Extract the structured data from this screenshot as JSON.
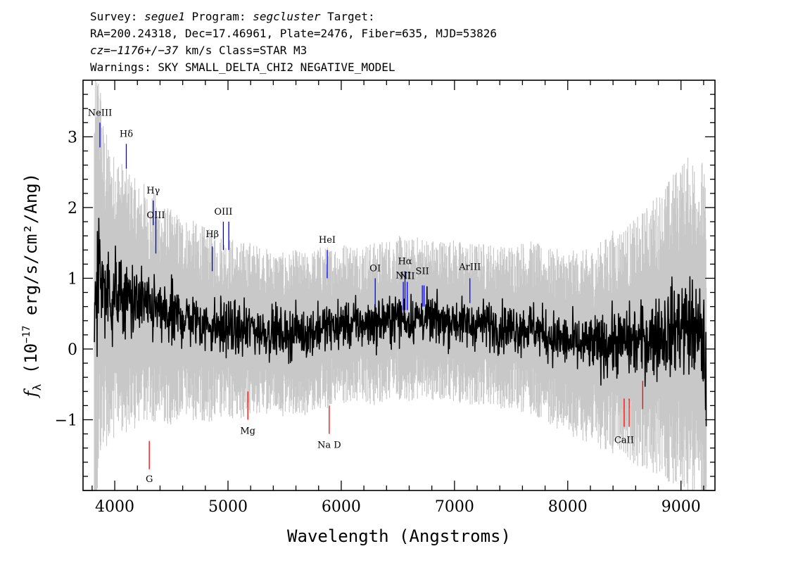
{
  "header": {
    "line1": {
      "survey_label": "Survey: ",
      "survey": "segue1",
      "program_label": " Program: ",
      "program": "segcluster",
      "target_label": " Target:"
    },
    "line2": "RA=200.24318, Dec=17.46961, Plate=2476, Fiber=635, MJD=53826",
    "line3": {
      "cz_label": "cz",
      "cz_value": "=−1176+/−37",
      "rest": " km/s Class=STAR M3"
    },
    "line4": "Warnings: SKY SMALL_DELTA_CHI2 NEGATIVE_MODEL"
  },
  "chart_data": {
    "type": "line",
    "xlabel": "Wavelength (Angstroms)",
    "ylabel_prefix": "f",
    "ylabel_sub": "λ",
    "ylabel_rest": " (10",
    "ylabel_exp": "−17",
    "ylabel_tail": " erg/s/cm²/Ang)",
    "xlim": [
      3720,
      9300
    ],
    "ylim": [
      -2.0,
      3.8
    ],
    "xticks": [
      {
        "value": 4000,
        "label": "4000"
      },
      {
        "value": 5000,
        "label": "5000"
      },
      {
        "value": 6000,
        "label": "6000"
      },
      {
        "value": 7000,
        "label": "7000"
      },
      {
        "value": 8000,
        "label": "8000"
      },
      {
        "value": 9000,
        "label": "9000"
      }
    ],
    "yticks": [
      {
        "value": -1,
        "label": "−1"
      },
      {
        "value": 0,
        "label": "0"
      },
      {
        "value": 1,
        "label": "1"
      },
      {
        "value": 2,
        "label": "2"
      },
      {
        "value": 3,
        "label": "3"
      }
    ],
    "series": [
      {
        "role": "flux",
        "color": "#000000",
        "x": [
          3820,
          3860,
          3900,
          3940,
          3980,
          4020,
          4080,
          4150,
          4200,
          4250,
          4300,
          4350,
          4400,
          4500,
          4600,
          4700,
          4800,
          4900,
          5000,
          5100,
          5200,
          5300,
          5400,
          5500,
          5600,
          5700,
          5800,
          5900,
          6000,
          6100,
          6200,
          6300,
          6400,
          6500,
          6600,
          6700,
          6800,
          6900,
          7000,
          7100,
          7200,
          7300,
          7400,
          7500,
          7600,
          7700,
          7800,
          7900,
          8000,
          8100,
          8200,
          8300,
          8400,
          8500,
          8600,
          8700,
          8800,
          8900,
          9000,
          9100,
          9200,
          9225
        ],
        "y": [
          0.2,
          1.2,
          0.9,
          0.8,
          0.7,
          0.8,
          0.7,
          0.7,
          0.6,
          0.7,
          0.5,
          0.6,
          0.5,
          0.45,
          0.45,
          0.4,
          0.35,
          0.3,
          0.3,
          0.25,
          0.3,
          0.25,
          0.25,
          0.2,
          0.25,
          0.2,
          0.3,
          0.3,
          0.35,
          0.35,
          0.35,
          0.35,
          0.4,
          0.45,
          0.4,
          0.45,
          0.4,
          0.4,
          0.4,
          0.35,
          0.35,
          0.35,
          0.3,
          0.3,
          0.3,
          0.3,
          0.2,
          0.15,
          0.1,
          0.05,
          0.05,
          0.05,
          0.1,
          0.1,
          0.1,
          0.15,
          0.2,
          0.25,
          0.35,
          0.3,
          0.1,
          -0.6
        ]
      },
      {
        "role": "error",
        "color": "#c8c8c8",
        "x": [
          3820,
          3900,
          4000,
          4200,
          4400,
          4600,
          4800,
          5000,
          5200,
          5400,
          5600,
          5800,
          6000,
          6200,
          6400,
          6600,
          6800,
          7000,
          7200,
          7400,
          7600,
          7800,
          8000,
          8200,
          8400,
          8600,
          8800,
          9000,
          9200,
          9225
        ],
        "y": [
          2.5,
          1.6,
          1.4,
          1.2,
          1.1,
          1.0,
          0.95,
          0.9,
          0.85,
          0.8,
          0.8,
          0.8,
          0.8,
          0.8,
          0.8,
          0.8,
          0.8,
          0.8,
          0.8,
          0.8,
          0.85,
          0.85,
          0.9,
          0.95,
          1.1,
          1.2,
          1.4,
          1.6,
          1.8,
          1.8
        ]
      }
    ],
    "emission_lines": [
      {
        "label": "NeIII",
        "wave": 3869,
        "y_top": 3.2,
        "y_bot": 2.85,
        "label_y": 3.3
      },
      {
        "label": "Hδ",
        "wave": 4102,
        "y_top": 2.9,
        "y_bot": 2.55,
        "label_y": 3.0
      },
      {
        "label": "Hγ",
        "wave": 4340,
        "y_top": 2.1,
        "y_bot": 1.75,
        "label_y": 2.2
      },
      {
        "label": "OIII",
        "wave": 4363,
        "y_top": 1.95,
        "y_bot": 1.35,
        "label_y": 1.85
      },
      {
        "label": "Hβ",
        "wave": 4861,
        "y_top": 1.45,
        "y_bot": 1.1,
        "label_y": 1.58
      },
      {
        "label": "OIII",
        "wave": 4959,
        "y_top": 1.8,
        "y_bot": 1.4,
        "label_y": 1.9
      },
      {
        "label": "",
        "wave": 5007,
        "y_top": 1.8,
        "y_bot": 1.4,
        "label_y": 1.9
      },
      {
        "label": "HeI",
        "wave": 5876,
        "y_top": 1.4,
        "y_bot": 1.0,
        "label_y": 1.5
      },
      {
        "label": "OI",
        "wave": 6300,
        "y_top": 1.0,
        "y_bot": 0.6,
        "label_y": 1.1
      },
      {
        "label": "NII",
        "wave": 6548,
        "y_top": 0.95,
        "y_bot": 0.55,
        "label_y": 1.0
      },
      {
        "label": "Hα",
        "wave": 6563,
        "y_top": 1.1,
        "y_bot": 0.55,
        "label_y": 1.2
      },
      {
        "label": "NII",
        "wave": 6583,
        "y_top": 0.95,
        "y_bot": 0.55,
        "label_y": 0.99
      },
      {
        "label": "SII",
        "wave": 6716,
        "y_top": 0.9,
        "y_bot": 0.6,
        "label_y": 1.06
      },
      {
        "label": "",
        "wave": 6731,
        "y_top": 0.9,
        "y_bot": 0.6,
        "label_y": 1.06
      },
      {
        "label": "ArIII",
        "wave": 7136,
        "y_top": 1.0,
        "y_bot": 0.65,
        "label_y": 1.12
      }
    ],
    "absorption_lines": [
      {
        "label": "G",
        "wave": 4305,
        "y_top": -1.3,
        "y_bot": -1.7,
        "label_y": -1.88
      },
      {
        "label": "Mg",
        "wave": 5175,
        "y_top": -0.6,
        "y_bot": -1.0,
        "label_y": -1.2
      },
      {
        "label": "Na D",
        "wave": 5894,
        "y_top": -0.8,
        "y_bot": -1.2,
        "label_y": -1.4
      },
      {
        "label": "CaII",
        "wave": 8498,
        "y_top": -0.7,
        "y_bot": -1.1,
        "label_y": -1.33
      },
      {
        "label": "",
        "wave": 8542,
        "y_top": -0.7,
        "y_bot": -1.1,
        "label_y": -1.33
      },
      {
        "label": "",
        "wave": 8662,
        "y_top": -0.45,
        "y_bot": -0.85,
        "label_y": -1.33
      }
    ],
    "emission_color": "#0000ff",
    "absorption_color": "#ff0000"
  }
}
